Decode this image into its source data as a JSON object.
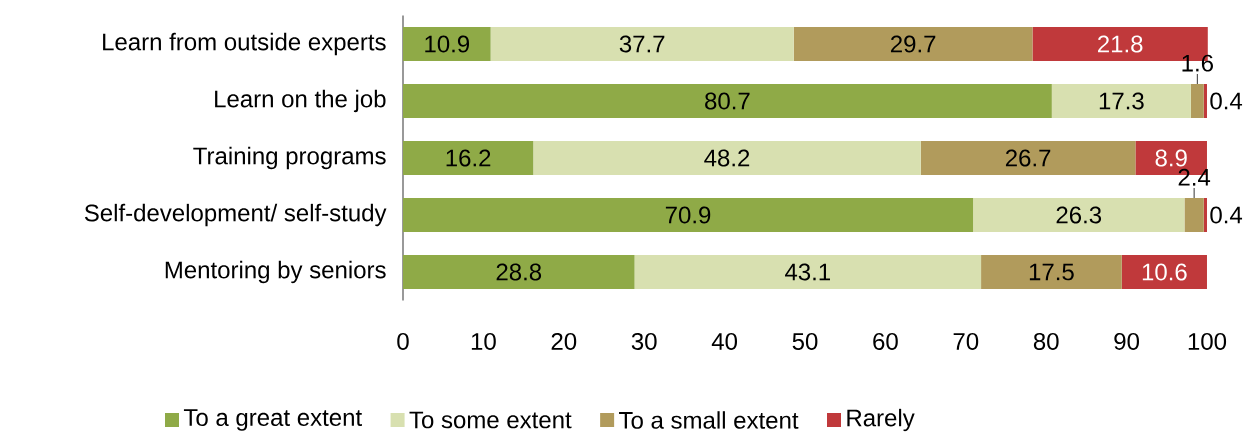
{
  "chart_data": {
    "type": "bar",
    "orientation": "horizontal",
    "stacked": true,
    "categories": [
      "Learn from outside experts",
      "Learn on the job",
      "Training programs",
      "Self-development/ self-study",
      "Mentoring by seniors"
    ],
    "series": [
      {
        "name": "To a great extent",
        "color": "#8faa47",
        "values": [
          10.9,
          80.7,
          16.2,
          70.9,
          28.8
        ]
      },
      {
        "name": "To some extent",
        "color": "#d8e0b0",
        "values": [
          37.7,
          17.3,
          48.2,
          26.3,
          43.1
        ]
      },
      {
        "name": "To a small extent",
        "color": "#b19b5c",
        "values": [
          29.7,
          1.6,
          26.7,
          2.4,
          17.5
        ]
      },
      {
        "name": "Rarely",
        "color": "#c0393b",
        "values": [
          21.8,
          0.4,
          8.9,
          0.4,
          10.6
        ]
      }
    ],
    "xlim": [
      0,
      100
    ],
    "xticks": [
      0,
      10,
      20,
      30,
      40,
      50,
      60,
      70,
      80,
      90,
      100
    ],
    "data_labels": true,
    "legend": "bottom",
    "grid": false
  }
}
